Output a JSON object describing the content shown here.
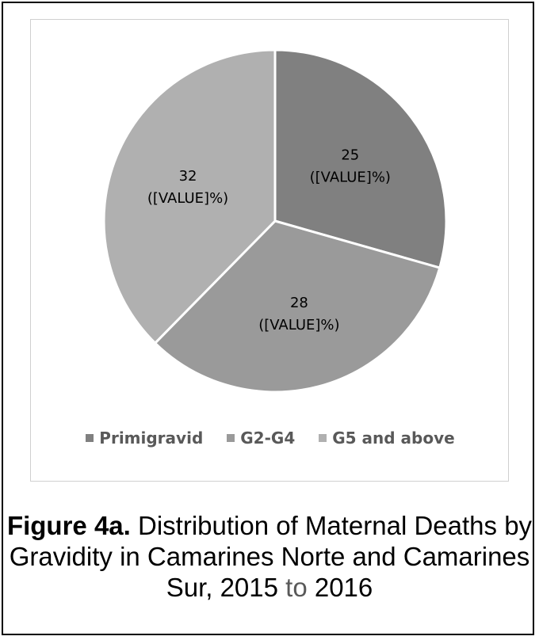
{
  "chart_data": {
    "type": "pie",
    "categories": [
      "Primigravid",
      "G2-G4",
      "G5 and above"
    ],
    "values": [
      25,
      28,
      32
    ],
    "percent_label_placeholder": "([VALUE]%)",
    "colors": [
      "#808080",
      "#9a9a9a",
      "#b0b0b0"
    ],
    "start_angle_deg": 0,
    "direction": "clockwise",
    "legend_position": "bottom",
    "title": ""
  },
  "caption": {
    "bold": "Figure 4a.",
    "text_main": " Distribution of Maternal Deaths by Gravidity in Camarines Norte and Camarines Sur, 2015 ",
    "text_grey": "to",
    "text_end": " 2016"
  }
}
